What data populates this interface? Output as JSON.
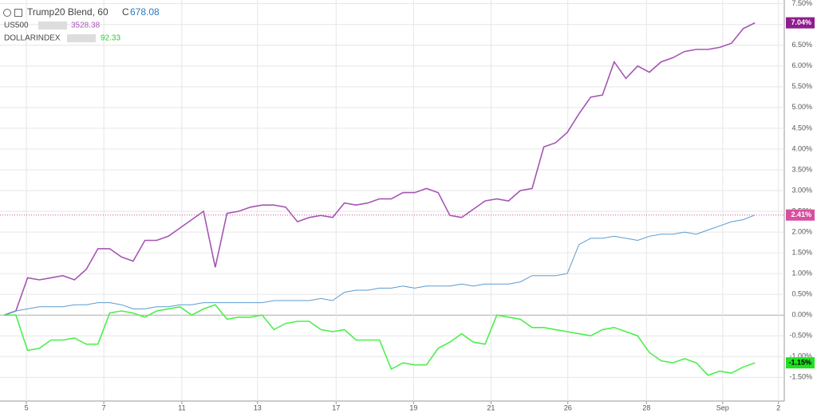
{
  "chart_data": {
    "type": "line",
    "header": {
      "title": "Trump20 Blend, 60",
      "close_prefix": "C",
      "close_value": "678.08"
    },
    "legend_items": [
      {
        "name": "US500",
        "last": "3528.38"
      },
      {
        "name": "DOLLARINDEX",
        "last": "92.33"
      }
    ],
    "x": [
      0,
      2,
      4,
      6,
      8,
      10,
      12,
      14,
      16,
      18,
      20,
      22,
      24,
      26,
      28,
      30,
      32,
      34,
      36,
      38,
      40,
      42,
      44,
      46,
      48,
      50,
      52,
      54,
      56,
      58,
      60,
      62,
      64,
      66,
      68,
      70,
      72,
      74,
      76,
      78,
      80,
      82,
      84,
      86,
      88,
      90,
      92,
      94,
      96,
      98,
      100,
      102,
      104,
      106,
      108,
      110,
      112,
      114,
      116,
      118,
      120,
      122,
      124,
      126,
      128
    ],
    "series": [
      {
        "name": "Trump20 Blend, 60",
        "color": "#a655b4",
        "values": [
          0,
          0.1,
          0.9,
          0.85,
          0.9,
          0.95,
          0.85,
          1.1,
          1.6,
          1.6,
          1.4,
          1.3,
          1.8,
          1.8,
          1.9,
          2.1,
          2.3,
          2.5,
          1.15,
          2.45,
          2.5,
          2.6,
          2.65,
          2.65,
          2.6,
          2.25,
          2.35,
          2.4,
          2.35,
          2.7,
          2.65,
          2.7,
          2.8,
          2.8,
          2.95,
          2.95,
          3.05,
          2.95,
          2.4,
          2.35,
          2.55,
          2.75,
          2.8,
          2.75,
          3.0,
          3.05,
          4.05,
          4.15,
          4.4,
          4.85,
          5.25,
          5.3,
          6.1,
          5.7,
          6.0,
          5.85,
          6.1,
          6.2,
          6.35,
          6.4,
          6.4,
          6.45,
          6.55,
          6.9,
          7.04
        ],
        "value_labels": [
          null,
          null,
          null,
          null,
          null,
          null,
          null,
          null,
          null,
          null,
          null,
          null,
          null,
          null,
          null,
          null,
          null,
          null,
          null,
          null,
          null,
          null,
          null,
          null,
          null,
          null,
          null,
          null,
          null,
          null,
          null,
          null,
          null,
          null,
          null,
          null,
          null,
          null,
          null,
          null,
          null,
          null,
          null,
          null,
          null,
          null,
          null,
          null,
          null,
          null,
          null,
          null,
          null,
          null,
          null,
          null,
          null,
          null,
          null,
          null,
          null,
          null,
          null,
          null,
          "7.04%"
        ],
        "badge_color": "#8e1d8e"
      },
      {
        "name": "US500",
        "color": "#5b9bd0",
        "values": [
          0,
          0.1,
          0.15,
          0.2,
          0.2,
          0.2,
          0.25,
          0.25,
          0.3,
          0.3,
          0.25,
          0.15,
          0.15,
          0.2,
          0.2,
          0.25,
          0.25,
          0.3,
          0.3,
          0.3,
          0.3,
          0.3,
          0.3,
          0.35,
          0.35,
          0.35,
          0.35,
          0.4,
          0.35,
          0.55,
          0.6,
          0.6,
          0.65,
          0.65,
          0.7,
          0.65,
          0.7,
          0.7,
          0.7,
          0.75,
          0.7,
          0.75,
          0.75,
          0.75,
          0.8,
          0.95,
          0.95,
          0.95,
          1.0,
          1.7,
          1.85,
          1.85,
          1.9,
          1.85,
          1.8,
          1.9,
          1.95,
          1.95,
          2.0,
          1.95,
          2.05,
          2.15,
          2.25,
          2.3,
          2.41
        ],
        "value_labels": [
          null,
          null,
          null,
          null,
          null,
          null,
          null,
          null,
          null,
          null,
          null,
          null,
          null,
          null,
          null,
          null,
          null,
          null,
          null,
          null,
          null,
          null,
          null,
          null,
          null,
          null,
          null,
          null,
          null,
          null,
          null,
          null,
          null,
          null,
          null,
          null,
          null,
          null,
          null,
          null,
          null,
          null,
          null,
          null,
          null,
          null,
          null,
          null,
          null,
          null,
          null,
          null,
          null,
          null,
          null,
          null,
          null,
          null,
          null,
          null,
          null,
          null,
          null,
          null,
          "2.41%"
        ],
        "badge_color": "#d74fa0"
      },
      {
        "name": "DOLLARINDEX",
        "color": "#4cef4c",
        "values": [
          0,
          0.0,
          -0.85,
          -0.8,
          -0.6,
          -0.6,
          -0.55,
          -0.7,
          -0.7,
          0.05,
          0.1,
          0.05,
          -0.05,
          0.1,
          0.15,
          0.2,
          0.0,
          0.15,
          0.25,
          -0.1,
          -0.05,
          -0.05,
          0.0,
          -0.35,
          -0.2,
          -0.15,
          -0.15,
          -0.35,
          -0.4,
          -0.35,
          -0.6,
          -0.6,
          -0.6,
          -1.3,
          -1.15,
          -1.2,
          -1.2,
          -0.8,
          -0.65,
          -0.45,
          -0.65,
          -0.7,
          0.0,
          -0.05,
          -0.1,
          -0.3,
          -0.3,
          -0.35,
          -0.4,
          -0.45,
          -0.5,
          -0.35,
          -0.3,
          -0.4,
          -0.5,
          -0.9,
          -1.1,
          -1.15,
          -1.05,
          -1.15,
          -1.45,
          -1.35,
          -1.4,
          -1.25,
          -1.15
        ],
        "value_labels": [
          null,
          null,
          null,
          null,
          null,
          null,
          null,
          null,
          null,
          null,
          null,
          null,
          null,
          null,
          null,
          null,
          null,
          null,
          null,
          null,
          null,
          null,
          null,
          null,
          null,
          null,
          null,
          null,
          null,
          null,
          null,
          null,
          null,
          null,
          null,
          null,
          null,
          null,
          null,
          null,
          null,
          null,
          null,
          null,
          null,
          null,
          null,
          null,
          null,
          null,
          null,
          null,
          null,
          null,
          null,
          null,
          null,
          null,
          null,
          null,
          null,
          null,
          null,
          null,
          "-1.15%"
        ],
        "badge_color": "#22e022"
      }
    ],
    "xlim": [
      -0.7,
      133
    ],
    "xticks": [
      {
        "value": 3.8,
        "label": "5"
      },
      {
        "value": 17,
        "label": "7"
      },
      {
        "value": 30.3,
        "label": "11"
      },
      {
        "value": 43.2,
        "label": "13"
      },
      {
        "value": 56.6,
        "label": "17"
      },
      {
        "value": 69.8,
        "label": "19"
      },
      {
        "value": 83,
        "label": "21"
      },
      {
        "value": 96.1,
        "label": "26"
      },
      {
        "value": 109.5,
        "label": "28"
      },
      {
        "value": 122.5,
        "label": "Sep"
      },
      {
        "value": 132,
        "label": "2"
      }
    ],
    "ylim": [
      -2.07,
      7.59
    ],
    "yticks": [
      {
        "value": 7.5,
        "label": "7.50%"
      },
      {
        "value": 7,
        "label": "7.00%"
      },
      {
        "value": 6.5,
        "label": "6.50%"
      },
      {
        "value": 6,
        "label": "6.00%"
      },
      {
        "value": 5.5,
        "label": "5.50%"
      },
      {
        "value": 5,
        "label": "5.00%"
      },
      {
        "value": 4.5,
        "label": "4.50%"
      },
      {
        "value": 4,
        "label": "4.00%"
      },
      {
        "value": 3.5,
        "label": "3.50%"
      },
      {
        "value": 3,
        "label": "3.00%"
      },
      {
        "value": 2.5,
        "label": "2.50%"
      },
      {
        "value": 2,
        "label": "2.00%"
      },
      {
        "value": 1.5,
        "label": "1.50%"
      },
      {
        "value": 1,
        "label": "1.00%"
      },
      {
        "value": 0.5,
        "label": "0.50%"
      },
      {
        "value": 0,
        "label": "0.00%"
      },
      {
        "value": -0.5,
        "label": "-0.50%"
      },
      {
        "value": -1,
        "label": "-1.00%"
      },
      {
        "value": -1.5,
        "label": "-1.50%"
      }
    ],
    "grid": true
  }
}
